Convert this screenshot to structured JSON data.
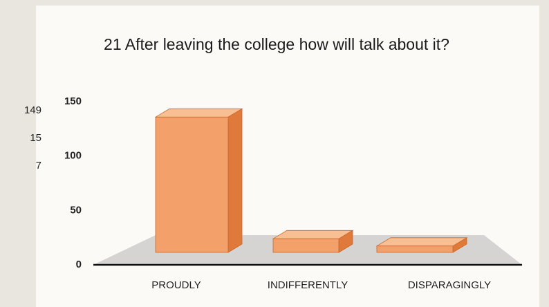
{
  "chart_data": {
    "type": "bar",
    "title": "21 After leaving the college how will talk about it?",
    "categories": [
      "PROUDLY",
      "INDIFFERENTLY",
      "DISPARAGINGLY"
    ],
    "values": [
      149,
      15,
      7
    ],
    "color": "#f4a06a",
    "ylim": [
      0,
      150
    ],
    "yticks": [
      0,
      50,
      100,
      150
    ]
  }
}
